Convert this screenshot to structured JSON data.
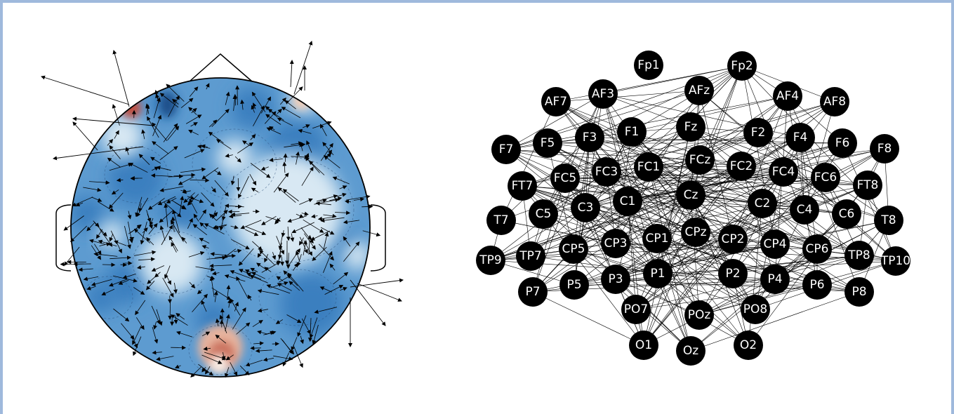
{
  "topomap": {
    "colors": {
      "base": "#3a7fbf",
      "light": "#d8e8f3",
      "red": "#b2182b",
      "arrow": "#000000"
    }
  },
  "network": {
    "node_color": "#000000",
    "label_color": "#ffffff",
    "nodes": [
      "Fp1",
      "Fp2",
      "AF7",
      "AF3",
      "AFz",
      "AF4",
      "AF8",
      "F7",
      "F5",
      "F3",
      "F1",
      "Fz",
      "F2",
      "F4",
      "F6",
      "F8",
      "FT7",
      "FC5",
      "FC3",
      "FC1",
      "FCz",
      "FC2",
      "FC4",
      "FC6",
      "FT8",
      "T7",
      "C5",
      "C3",
      "C1",
      "Cz",
      "C2",
      "C4",
      "C6",
      "T8",
      "TP9",
      "TP7",
      "CP5",
      "CP3",
      "CP1",
      "CPz",
      "CP2",
      "CP4",
      "CP6",
      "TP8",
      "TP10",
      "P7",
      "P5",
      "P3",
      "P1",
      "P2",
      "P4",
      "P6",
      "P8",
      "PO7",
      "POz",
      "PO8",
      "O1",
      "Oz",
      "O2"
    ]
  }
}
